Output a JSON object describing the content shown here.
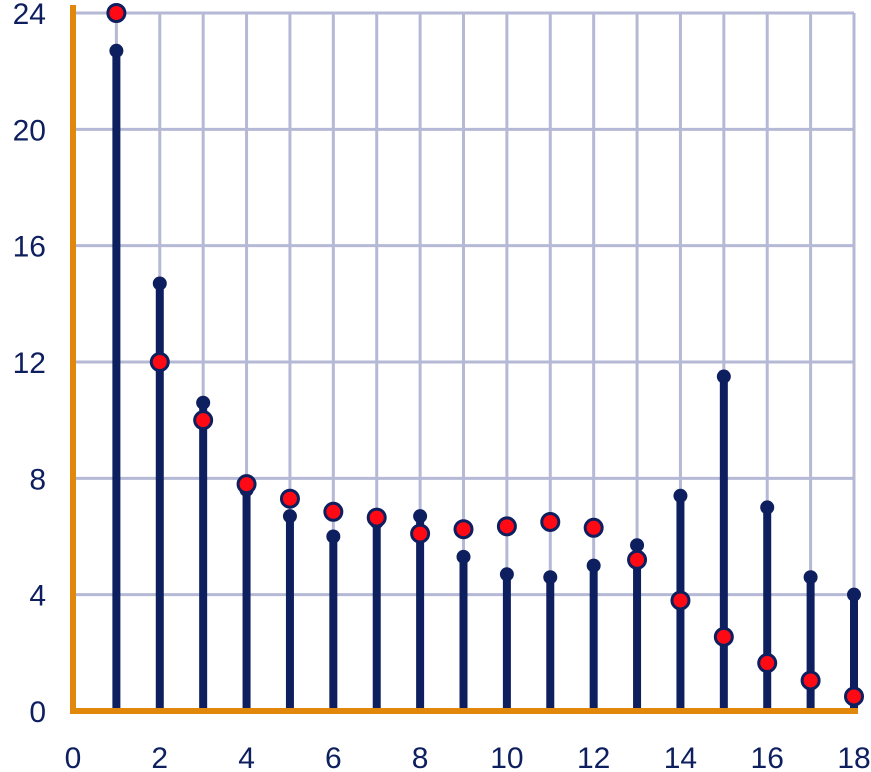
{
  "chart_data": {
    "type": "stem",
    "xlim": [
      0,
      18
    ],
    "ylim": [
      0,
      24
    ],
    "xticks": [
      0,
      2,
      4,
      6,
      8,
      10,
      12,
      14,
      16,
      18
    ],
    "yticks": [
      0,
      4,
      8,
      12,
      16,
      20,
      24
    ],
    "x_tick_labels": [
      "0",
      "2",
      "4",
      "6",
      "8",
      "10",
      "12",
      "14",
      "16",
      "18"
    ],
    "y_tick_labels": [
      "0",
      "4",
      "8",
      "12",
      "16",
      "20",
      "24"
    ],
    "grid": true,
    "x": [
      1,
      2,
      3,
      4,
      5,
      6,
      7,
      8,
      9,
      10,
      11,
      12,
      13,
      14,
      15,
      16,
      17,
      18
    ],
    "series": [
      {
        "style": "stems",
        "values": [
          22.7,
          14.7,
          10.6,
          7.6,
          6.7,
          6.0,
          6.5,
          6.7,
          5.3,
          4.7,
          4.6,
          5.0,
          5.7,
          7.4,
          11.5,
          7.0,
          4.6,
          4.0
        ]
      },
      {
        "style": "markers",
        "values": [
          24.0,
          12.0,
          10.0,
          7.8,
          7.3,
          6.85,
          6.65,
          6.1,
          6.25,
          6.35,
          6.5,
          6.3,
          5.2,
          3.8,
          2.55,
          1.65,
          1.05,
          0.5
        ]
      }
    ],
    "colors": {
      "grid": "#b5b9d6",
      "axis": "#e0870c",
      "stem": "#0d1f5e",
      "marker_fill": "#ff0a14",
      "marker_stroke": "#0d1f5e",
      "tick_text": "#0d1f5e"
    }
  }
}
